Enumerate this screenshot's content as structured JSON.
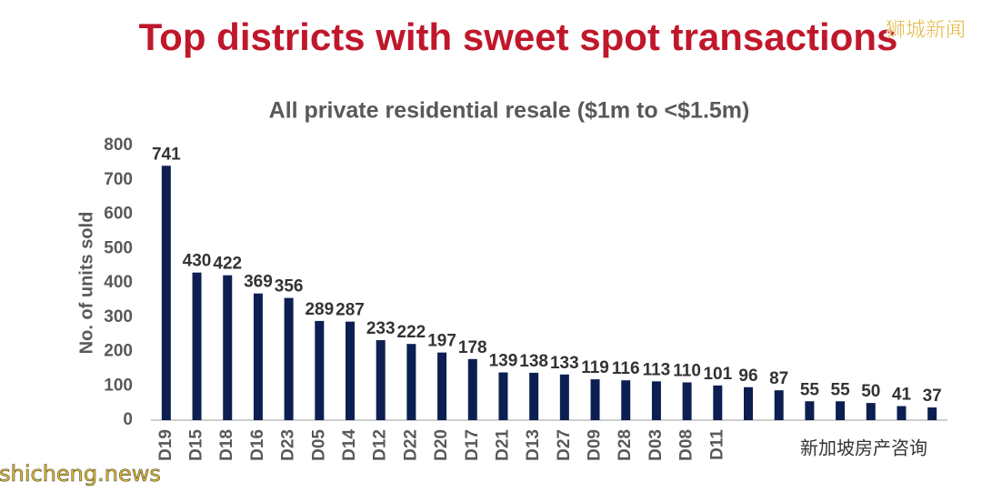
{
  "chart_data": {
    "type": "bar",
    "title": "Top districts with sweet spot transactions",
    "subtitle": "All private residential resale ($1m to <$1.5m)",
    "y_label": "No. of units sold",
    "categories": [
      "D19",
      "D15",
      "D18",
      "D16",
      "D23",
      "D05",
      "D14",
      "D12",
      "D22",
      "D20",
      "D17",
      "D21",
      "D13",
      "D27",
      "D09",
      "D28",
      "D03",
      "D08",
      "D11",
      null,
      null,
      null,
      null,
      null,
      null,
      null
    ],
    "values": [
      741,
      430,
      422,
      369,
      356,
      289,
      287,
      233,
      222,
      197,
      178,
      139,
      138,
      133,
      119,
      116,
      113,
      110,
      101,
      96,
      87,
      55,
      55,
      50,
      41,
      37
    ],
    "color": "#0d1f52",
    "ylim": [
      0,
      800
    ],
    "yticks": [
      0,
      100,
      200,
      300,
      400,
      500,
      600,
      700,
      800
    ],
    "grid": false,
    "annotations": [
      "狮城新闻",
      "shicheng.news",
      "新加坡房产咨询"
    ]
  }
}
